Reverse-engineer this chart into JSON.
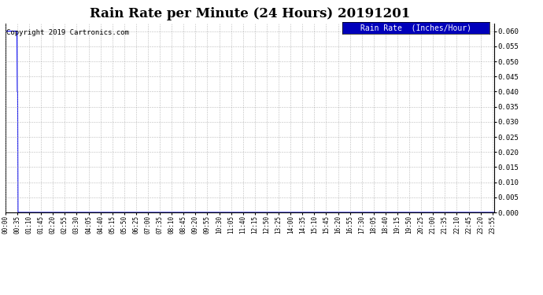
{
  "title": "Rain Rate per Minute (24 Hours) 20191201",
  "copyright_text": "Copyright 2019 Cartronics.com",
  "legend_label": "Rain Rate  (Inches/Hour)",
  "legend_bg_color": "#0000bb",
  "legend_text_color": "#ffffff",
  "line_color": "#0000ff",
  "background_color": "#ffffff",
  "grid_color": "#aaaaaa",
  "ylim": [
    0.0,
    0.0625
  ],
  "yticks": [
    0.0,
    0.005,
    0.01,
    0.015,
    0.02,
    0.025,
    0.03,
    0.035,
    0.04,
    0.045,
    0.05,
    0.055,
    0.06
  ],
  "total_minutes": 1440,
  "xtick_interval_minutes": 35,
  "figsize": [
    6.9,
    3.75
  ],
  "dpi": 100,
  "title_fontsize": 12,
  "copyright_fontsize": 6.5,
  "legend_fontsize": 7,
  "tick_fontsize": 5.5,
  "ytick_fontsize": 6.5
}
